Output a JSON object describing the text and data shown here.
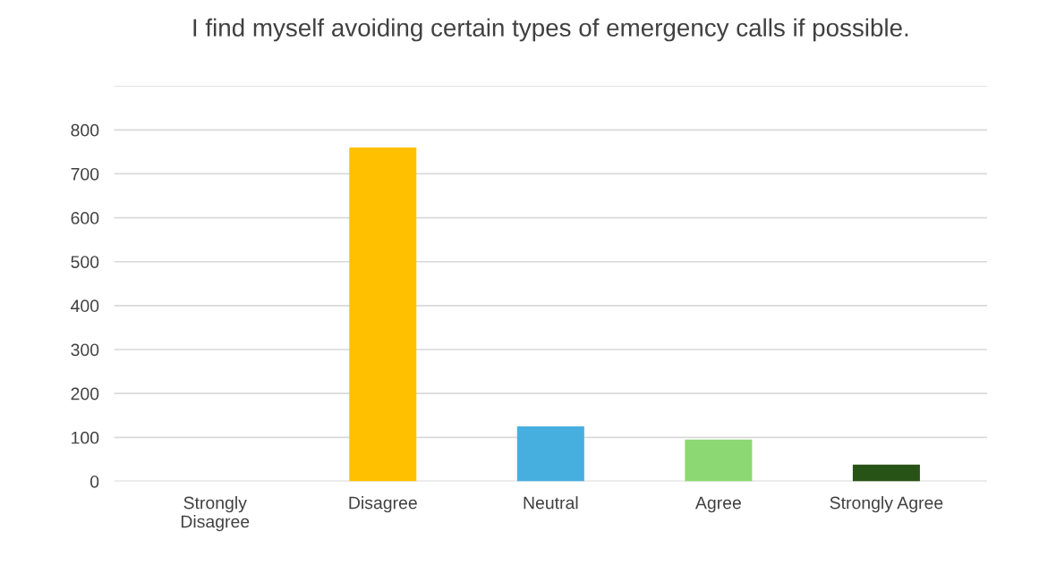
{
  "chart_data": {
    "type": "bar",
    "title": "I find myself avoiding certain types of emergency calls if possible.",
    "categories": [
      "Strongly\nDisagree",
      "Disagree",
      "Neutral",
      "Agree",
      "Strongly Agree"
    ],
    "values": [
      0,
      760,
      125,
      95,
      38
    ],
    "colors": [
      "#c00000",
      "#ffc000",
      "#47afe0",
      "#8cd872",
      "#275317"
    ],
    "ylim": [
      0,
      900
    ],
    "yticks": [
      0,
      100,
      200,
      300,
      400,
      500,
      600,
      700,
      800,
      {
        "value": 900,
        "label": null
      }
    ],
    "grid": "y"
  }
}
